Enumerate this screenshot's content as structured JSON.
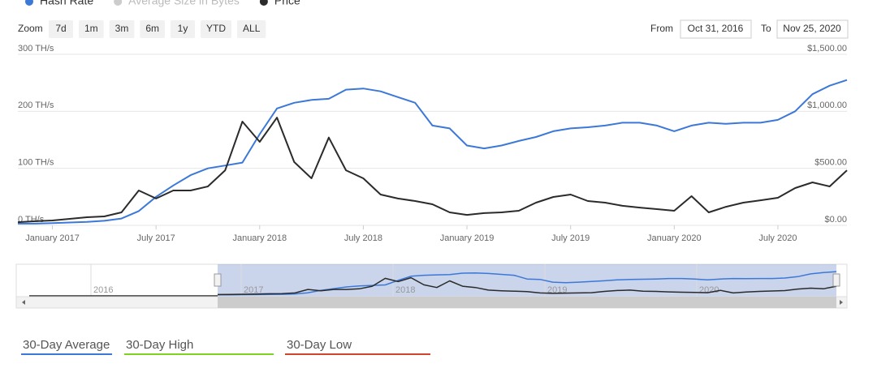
{
  "controls": {
    "zoom_label": "Zoom",
    "zoom_buttons": [
      "7d",
      "1m",
      "3m",
      "6m",
      "1y",
      "YTD",
      "ALL"
    ],
    "from_label": "From",
    "from_value": "Oct 31, 2016",
    "to_label": "To",
    "to_value": "Nov 25, 2020"
  },
  "chart_data": {
    "type": "line",
    "x": [
      "2016-11",
      "2016-12",
      "2017-01",
      "2017-02",
      "2017-03",
      "2017-04",
      "2017-05",
      "2017-06",
      "2017-07",
      "2017-08",
      "2017-09",
      "2017-10",
      "2017-11",
      "2017-12",
      "2018-01",
      "2018-02",
      "2018-03",
      "2018-04",
      "2018-05",
      "2018-06",
      "2018-07",
      "2018-08",
      "2018-09",
      "2018-10",
      "2018-11",
      "2018-12",
      "2019-01",
      "2019-02",
      "2019-03",
      "2019-04",
      "2019-05",
      "2019-06",
      "2019-07",
      "2019-08",
      "2019-09",
      "2019-10",
      "2019-11",
      "2019-12",
      "2020-01",
      "2020-02",
      "2020-03",
      "2020-04",
      "2020-05",
      "2020-06",
      "2020-07",
      "2020-08",
      "2020-09",
      "2020-10",
      "2020-11"
    ],
    "series": [
      {
        "name": "Hash Rate",
        "color": "#3b78d8",
        "values": [
          3,
          3,
          4,
          5,
          6,
          8,
          12,
          25,
          50,
          70,
          88,
          100,
          105,
          110,
          160,
          205,
          215,
          220,
          222,
          238,
          240,
          235,
          225,
          215,
          175,
          170,
          140,
          135,
          140,
          148,
          155,
          165,
          170,
          172,
          175,
          180,
          180,
          175,
          165,
          175,
          180,
          178,
          180,
          180,
          185,
          200,
          230,
          245,
          255
        ]
      },
      {
        "name": "Average Size in Bytes",
        "color": "#cccccc",
        "visible": false
      },
      {
        "name": "Price",
        "color": "#2b2b2b",
        "axis": "y2",
        "values": [
          28,
          36,
          43,
          57,
          71,
          78,
          114,
          306,
          235,
          306,
          306,
          341,
          483,
          910,
          732,
          945,
          555,
          412,
          770,
          483,
          412,
          270,
          235,
          213,
          185,
          114,
          92,
          107,
          114,
          128,
          199,
          249,
          270,
          213,
          199,
          171,
          156,
          142,
          128,
          256,
          114,
          163,
          199,
          220,
          242,
          327,
          377,
          341,
          483
        ]
      }
    ],
    "ylim": [
      0,
      300
    ],
    "yticks": [
      {
        "value": 0,
        "label": "0 TH/s"
      },
      {
        "value": 100,
        "label": "100 TH/s"
      },
      {
        "value": 200,
        "label": "200 TH/s"
      },
      {
        "value": 300,
        "label": "300 TH/s"
      }
    ],
    "y2lim": [
      0,
      1500
    ],
    "y2ticks": [
      {
        "value": 0,
        "label": "$0.00"
      },
      {
        "value": 500,
        "label": "$500.00"
      },
      {
        "value": 1000,
        "label": "$1,000.00"
      },
      {
        "value": 1500,
        "label": "$1,500.00"
      }
    ],
    "xticks": [
      {
        "value": "2017-01",
        "label": "January 2017"
      },
      {
        "value": "2017-07",
        "label": "July 2017"
      },
      {
        "value": "2018-01",
        "label": "January 2018"
      },
      {
        "value": "2018-07",
        "label": "July 2018"
      },
      {
        "value": "2019-01",
        "label": "January 2019"
      },
      {
        "value": "2019-07",
        "label": "July 2019"
      },
      {
        "value": "2020-01",
        "label": "January 2020"
      },
      {
        "value": "2020-07",
        "label": "July 2020"
      }
    ],
    "grid": true,
    "navigator_labels": [
      "2016",
      "2017",
      "2018",
      "2019",
      "2020"
    ]
  },
  "stats": [
    {
      "label": "30-Day Average",
      "color": "#3b78d8"
    },
    {
      "label": "30-Day High",
      "color": "#7ed321"
    },
    {
      "label": "30-Day Low",
      "color": "#d0442c"
    }
  ]
}
